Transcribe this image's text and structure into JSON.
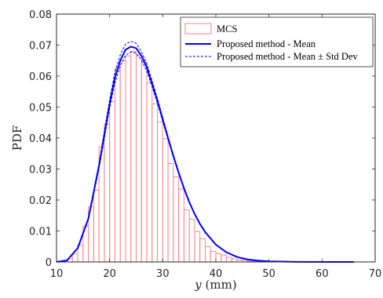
{
  "chart_data": {
    "type": "bar",
    "xlabel_var": "y",
    "xlabel_unit": "(mm)",
    "ylabel": "PDF",
    "xlim": [
      10,
      70
    ],
    "ylim": [
      0,
      0.08
    ],
    "xticks": [
      "10",
      "20",
      "30",
      "40",
      "50",
      "60",
      "70"
    ],
    "yticks": [
      "0",
      "0.01",
      "0.02",
      "0.03",
      "0.04",
      "0.05",
      "0.06",
      "0.07",
      "0.08"
    ],
    "grid": false,
    "legend_position": "top-right",
    "legend": [
      {
        "label": "MCS",
        "style": "bar-outline"
      },
      {
        "label": "Proposed method - Mean",
        "style": "solid-line"
      },
      {
        "label": "Proposed method - Mean ± Std Dev",
        "style": "dashed-line"
      }
    ],
    "histogram": {
      "name": "MCS",
      "bin_width": 1,
      "bin_starts": [
        12,
        13,
        14,
        15,
        16,
        17,
        18,
        19,
        20,
        21,
        22,
        23,
        24,
        25,
        26,
        27,
        28,
        29,
        30,
        31,
        32,
        33,
        34,
        35,
        36,
        37,
        38,
        39,
        40,
        41,
        42,
        43,
        44,
        45,
        46,
        47,
        48,
        49
      ],
      "values": [
        0.001,
        0.0025,
        0.0055,
        0.0115,
        0.0178,
        0.0232,
        0.0372,
        0.0445,
        0.0518,
        0.0625,
        0.0648,
        0.0665,
        0.068,
        0.0665,
        0.0645,
        0.0578,
        0.051,
        0.0452,
        0.0398,
        0.0318,
        0.0275,
        0.0235,
        0.0168,
        0.0138,
        0.0098,
        0.0075,
        0.005,
        0.0034,
        0.0027,
        0.0022,
        0.0015,
        0.001,
        0.0007,
        0.0005,
        0.0003,
        0.0002,
        0.0001,
        0.0001
      ]
    },
    "series": [
      {
        "name": "Proposed method - Mean",
        "x": [
          10,
          12,
          14,
          16,
          18,
          19,
          20,
          21,
          22,
          23,
          24,
          25,
          26,
          27,
          28,
          29,
          30,
          31,
          32,
          33,
          34,
          35,
          36,
          37,
          38,
          40,
          42,
          44,
          46,
          48,
          50,
          55,
          60,
          66
        ],
        "y": [
          0,
          0.0005,
          0.0045,
          0.014,
          0.031,
          0.041,
          0.051,
          0.0595,
          0.065,
          0.0685,
          0.0695,
          0.069,
          0.0665,
          0.0628,
          0.0575,
          0.052,
          0.046,
          0.04,
          0.0342,
          0.0288,
          0.0238,
          0.0193,
          0.0155,
          0.0123,
          0.0096,
          0.0056,
          0.0031,
          0.0016,
          0.0008,
          0.0004,
          0.0002,
          3e-05,
          0,
          0
        ]
      },
      {
        "name": "Proposed method - Mean + Std Dev",
        "x": [
          10,
          12,
          14,
          16,
          18,
          19,
          20,
          21,
          22,
          23,
          24,
          25,
          26,
          27,
          28,
          29,
          30,
          31,
          32,
          33,
          34,
          35,
          36,
          37,
          38,
          40,
          42,
          44,
          46,
          48,
          50,
          55,
          60,
          66
        ],
        "y": [
          0,
          0.0005,
          0.0046,
          0.0143,
          0.0318,
          0.0422,
          0.0524,
          0.0612,
          0.0668,
          0.0703,
          0.0712,
          0.0706,
          0.0679,
          0.064,
          0.0585,
          0.0528,
          0.0467,
          0.0405,
          0.0346,
          0.0291,
          0.024,
          0.0195,
          0.0156,
          0.0124,
          0.0097,
          0.0056,
          0.0031,
          0.0016,
          0.0008,
          0.0004,
          0.0002,
          3e-05,
          0,
          0
        ]
      },
      {
        "name": "Proposed method - Mean - Std Dev",
        "x": [
          10,
          12,
          14,
          16,
          18,
          19,
          20,
          21,
          22,
          23,
          24,
          25,
          26,
          27,
          28,
          29,
          30,
          31,
          32,
          33,
          34,
          35,
          36,
          37,
          38,
          40,
          42,
          44,
          46,
          48,
          50,
          55,
          60,
          66
        ],
        "y": [
          0,
          0.0005,
          0.0044,
          0.0137,
          0.0302,
          0.0398,
          0.0496,
          0.0578,
          0.0632,
          0.0667,
          0.0678,
          0.0674,
          0.0651,
          0.0616,
          0.0565,
          0.0512,
          0.0453,
          0.0395,
          0.0338,
          0.0285,
          0.0236,
          0.0191,
          0.0154,
          0.0122,
          0.0095,
          0.0056,
          0.0031,
          0.0016,
          0.0008,
          0.0004,
          0.0002,
          3e-05,
          0,
          0
        ]
      }
    ]
  },
  "colors": {
    "bar_edge": "#f08080",
    "line": "#0000ff",
    "axis": "#262626"
  }
}
